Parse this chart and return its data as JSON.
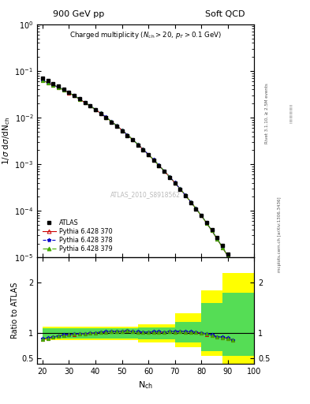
{
  "title_left": "900 GeV pp",
  "title_right": "Soft QCD",
  "ylabel_main": "1/σ dσ/dN_ch",
  "xlabel": "N_ch",
  "ylabel_ratio": "Ratio to ATLAS",
  "annotation": "Charged multiplicity (N_{ch} > 20, p_T > 0.1 GeV)",
  "watermark": "ATLAS_2010_S8918562",
  "right_label": "mcplots.cern.ch [arXiv:1306.3436]",
  "rivet_label": "Rivet 3.1.10, ≥ 2.5M events",
  "atlas_x": [
    20,
    22,
    24,
    26,
    28,
    30,
    32,
    34,
    36,
    38,
    40,
    42,
    44,
    46,
    48,
    50,
    52,
    54,
    56,
    58,
    60,
    62,
    64,
    66,
    68,
    70,
    72,
    74,
    76,
    78,
    80,
    82,
    84,
    86,
    88,
    90,
    92
  ],
  "atlas_y": [
    0.07,
    0.062,
    0.054,
    0.047,
    0.0405,
    0.035,
    0.0298,
    0.0252,
    0.0212,
    0.0177,
    0.0147,
    0.0121,
    0.0099,
    0.008,
    0.0065,
    0.0052,
    0.0041,
    0.0033,
    0.0026,
    0.00205,
    0.00158,
    0.00121,
    0.00092,
    0.0007,
    0.00052,
    0.00039,
    0.000285,
    0.00021,
    0.000152,
    0.00011,
    7.9e-05,
    5.6e-05,
    3.9e-05,
    2.7e-05,
    1.8e-05,
    1.2e-05,
    5e-06
  ],
  "pythia370_x": [
    20,
    22,
    24,
    26,
    28,
    30,
    32,
    34,
    36,
    38,
    40,
    42,
    44,
    46,
    48,
    50,
    52,
    54,
    56,
    58,
    60,
    62,
    64,
    66,
    68,
    70,
    72,
    74,
    76,
    78,
    80,
    82,
    84,
    86,
    88,
    90,
    92
  ],
  "pythia370_y": [
    0.062,
    0.056,
    0.05,
    0.0445,
    0.039,
    0.034,
    0.0292,
    0.0248,
    0.021,
    0.0177,
    0.0148,
    0.0123,
    0.0101,
    0.0083,
    0.0067,
    0.0054,
    0.0043,
    0.0034,
    0.00267,
    0.00208,
    0.00161,
    0.00124,
    0.000944,
    0.000714,
    0.000538,
    0.0004,
    0.000296,
    0.000216,
    0.000156,
    0.000112,
    7.9e-05,
    5.5e-05,
    3.75e-05,
    2.5e-05,
    1.65e-05,
    1.08e-05,
    4.3e-06
  ],
  "pythia378_x": [
    20,
    22,
    24,
    26,
    28,
    30,
    32,
    34,
    36,
    38,
    40,
    42,
    44,
    46,
    48,
    50,
    52,
    54,
    56,
    58,
    60,
    62,
    64,
    66,
    68,
    70,
    72,
    74,
    76,
    78,
    80,
    82,
    84,
    86,
    88,
    90,
    92
  ],
  "pythia378_y": [
    0.0625,
    0.0562,
    0.0502,
    0.0447,
    0.0393,
    0.0342,
    0.0294,
    0.025,
    0.0211,
    0.0178,
    0.0149,
    0.0124,
    0.0102,
    0.0083,
    0.0067,
    0.0054,
    0.0043,
    0.0034,
    0.00268,
    0.00209,
    0.00162,
    0.00125,
    0.00095,
    0.000718,
    0.000541,
    0.000403,
    0.000297,
    0.000217,
    0.000157,
    0.000113,
    8e-05,
    5.55e-05,
    3.78e-05,
    2.52e-05,
    1.66e-05,
    1.09e-05,
    4.35e-06
  ],
  "pythia379_x": [
    20,
    22,
    24,
    26,
    28,
    30,
    32,
    34,
    36,
    38,
    40,
    42,
    44,
    46,
    48,
    50,
    52,
    54,
    56,
    58,
    60,
    62,
    64,
    66,
    68,
    70,
    72,
    74,
    76,
    78,
    80,
    82,
    84,
    86,
    88,
    90,
    92
  ],
  "pythia379_y": [
    0.0622,
    0.056,
    0.05,
    0.0445,
    0.0391,
    0.0341,
    0.0293,
    0.0249,
    0.021,
    0.0178,
    0.0149,
    0.0124,
    0.0101,
    0.0083,
    0.0067,
    0.0054,
    0.0043,
    0.0034,
    0.00267,
    0.00208,
    0.00161,
    0.00124,
    0.000947,
    0.000716,
    0.000539,
    0.000401,
    0.000296,
    0.000216,
    0.000156,
    0.000112,
    7.93e-05,
    5.52e-05,
    3.76e-05,
    2.51e-05,
    1.65e-05,
    1.08e-05,
    4.3e-06
  ],
  "ratio370_y": [
    0.886,
    0.903,
    0.926,
    0.947,
    0.963,
    0.971,
    0.98,
    0.984,
    0.991,
    1.0,
    1.007,
    1.017,
    1.02,
    1.038,
    1.031,
    1.038,
    1.049,
    1.03,
    1.027,
    1.015,
    1.019,
    1.025,
    1.026,
    1.02,
    1.035,
    1.026,
    1.039,
    1.029,
    1.026,
    1.018,
    1.0,
    0.982,
    0.962,
    0.926,
    0.917,
    0.9,
    0.86
  ],
  "ratio378_y": [
    0.893,
    0.906,
    0.928,
    0.95,
    0.97,
    0.977,
    0.987,
    0.992,
    0.995,
    1.005,
    1.014,
    1.025,
    1.03,
    1.038,
    1.031,
    1.038,
    1.049,
    1.03,
    1.031,
    1.02,
    1.025,
    1.033,
    1.033,
    1.026,
    1.04,
    1.033,
    1.042,
    1.033,
    1.033,
    1.027,
    1.013,
    0.991,
    0.969,
    0.933,
    0.922,
    0.908,
    0.87
  ],
  "ratio379_y": [
    0.889,
    0.903,
    0.926,
    0.947,
    0.965,
    0.974,
    0.983,
    0.988,
    0.991,
    1.003,
    1.014,
    1.025,
    1.02,
    1.038,
    1.031,
    1.038,
    1.049,
    1.03,
    1.027,
    1.015,
    1.019,
    1.025,
    1.029,
    1.023,
    1.037,
    1.028,
    1.039,
    1.029,
    1.026,
    1.018,
    1.004,
    0.986,
    0.964,
    0.93,
    0.917,
    0.9,
    0.86
  ],
  "color_370": "#cc0000",
  "color_378": "#0000cc",
  "color_379": "#44aa00",
  "color_atlas": "black",
  "ylim_main": [
    1e-05,
    1.0
  ],
  "ylim_ratio_lo": 0.4,
  "ylim_ratio_hi": 2.5,
  "xlim": [
    18,
    100
  ],
  "yticks_ratio": [
    0.5,
    1.0,
    2.0
  ],
  "band_steps": {
    "x_edges": [
      20,
      56,
      70,
      80,
      88,
      100
    ],
    "yellow_lo": [
      0.87,
      0.82,
      0.72,
      0.55,
      0.4
    ],
    "yellow_hi": [
      1.13,
      1.18,
      1.4,
      1.85,
      2.2
    ],
    "green_lo": [
      0.9,
      0.88,
      0.82,
      0.65,
      0.55
    ],
    "green_hi": [
      1.1,
      1.12,
      1.22,
      1.6,
      1.8
    ]
  }
}
